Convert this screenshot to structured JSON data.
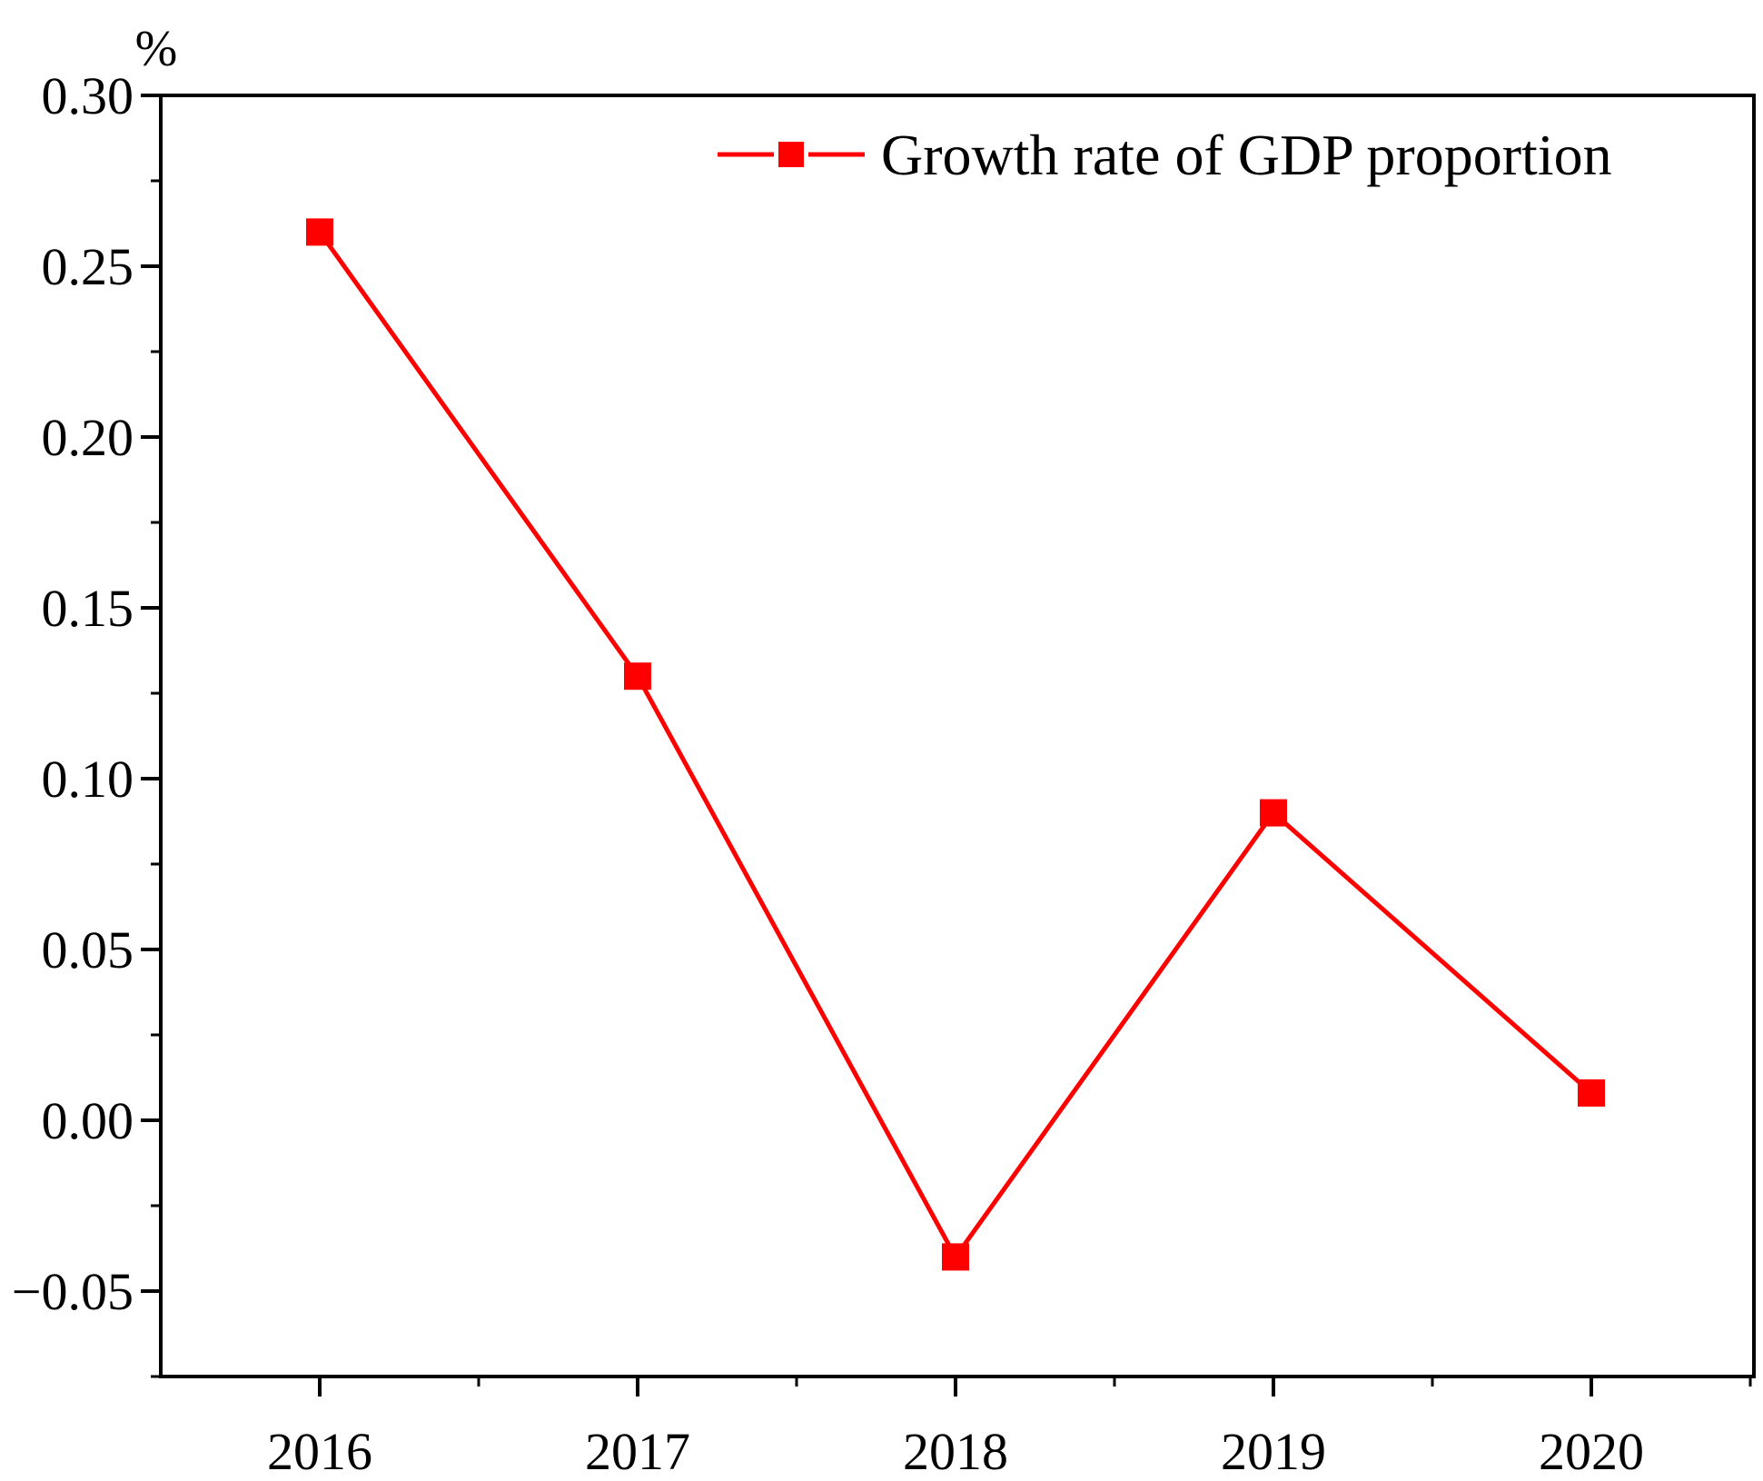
{
  "chart_data": {
    "type": "line",
    "title": "",
    "xlabel": "",
    "ylabel": "%",
    "categories": [
      "2016",
      "2017",
      "2018",
      "2019",
      "2020"
    ],
    "series": [
      {
        "name": "Growth rate of GDP proportion",
        "values": [
          0.26,
          0.13,
          -0.04,
          0.09,
          0.008
        ],
        "color": "#ff0000",
        "marker": "square"
      }
    ],
    "ylim": [
      -0.075,
      0.3
    ],
    "yticks": [
      -0.05,
      0.0,
      0.05,
      0.1,
      0.15,
      0.2,
      0.25,
      0.3
    ],
    "ytick_labels": [
      "−0.05",
      "0.00",
      "0.05",
      "0.10",
      "0.15",
      "0.20",
      "0.25",
      "0.30"
    ],
    "grid": false,
    "legend_position": "top-right"
  }
}
